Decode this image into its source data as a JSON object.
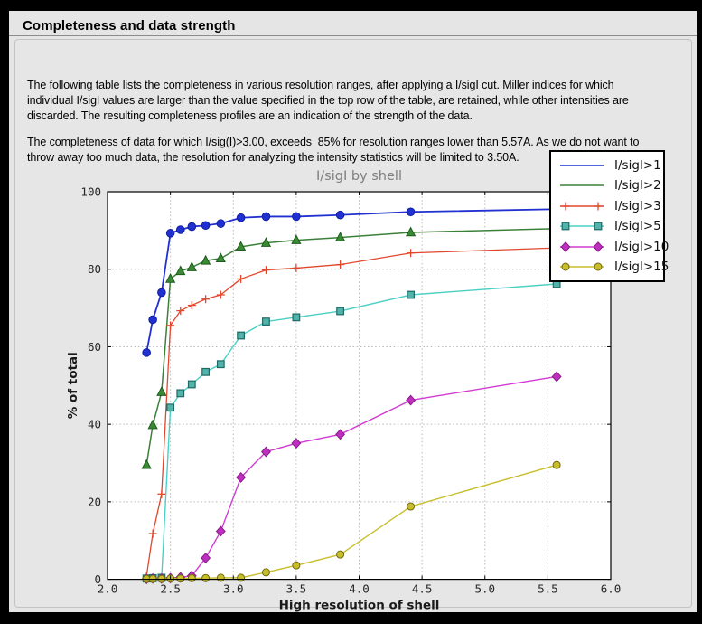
{
  "page": {
    "title": "Completeness and data strength"
  },
  "intro": {
    "paragraph1_lines": [
      "The following table lists the completeness in various resolution ranges, after applying a I/sigI cut. Miller indices for which",
      "individual I/sigI values are larger than the value specified in the top row of the table, are retained, while other intensities are",
      "discarded. The resulting completeness profiles are an indication of the strength of the data."
    ],
    "paragraph2_lines": [
      "The completeness of data for which I/sig(I)>3.00, exceeds  85% for resolution ranges lower than 5.57A. As we do not want to",
      "throw away too much data, the resolution for analyzing the intensity statistics will be limited to 3.50A."
    ]
  },
  "chart_data": {
    "type": "line",
    "title": "I/sigI by shell",
    "xlabel": "High resolution of shell",
    "ylabel": "% of total",
    "xlim": [
      2.0,
      6.0
    ],
    "ylim": [
      0,
      100
    ],
    "x_ticks": [
      "2.0",
      "2.5",
      "3.0",
      "3.5",
      "4.0",
      "4.5",
      "5.0",
      "5.5",
      "6.0"
    ],
    "y_ticks": [
      "0",
      "20",
      "40",
      "60",
      "80",
      "100"
    ],
    "grid": "dotted",
    "legend_position": "upper right",
    "x": [
      2.31,
      2.36,
      2.43,
      2.5,
      2.58,
      2.67,
      2.78,
      2.9,
      3.06,
      3.26,
      3.5,
      3.85,
      4.41,
      5.57
    ],
    "series": [
      {
        "name": "I/sigI>1",
        "color": "#2130d0",
        "marker": "circle",
        "marker_fill": "#2130d0",
        "marker_edge": "#101f9e",
        "marker_size": 4.3,
        "line_width": 1.8,
        "legend_markers": false,
        "values": [
          58.5,
          67.0,
          74.0,
          89.3,
          90.2,
          91.0,
          91.3,
          91.8,
          93.3,
          93.6,
          93.6,
          94.0,
          94.8,
          95.5
        ]
      },
      {
        "name": "I/sigI>2",
        "color": "#3b8039",
        "marker": "triangle",
        "marker_fill": "#3a8a33",
        "marker_edge": "#1d5a1d",
        "marker_size": 4.8,
        "line_width": 1.5,
        "legend_markers": false,
        "values": [
          29.5,
          39.8,
          48.3,
          77.5,
          79.5,
          80.5,
          82.2,
          82.8,
          85.8,
          86.8,
          87.5,
          88.2,
          89.5,
          90.5
        ]
      },
      {
        "name": "I/sigI>3",
        "color": "#e2472e",
        "marker": "plus",
        "marker_fill": "#e2472e",
        "marker_edge": "#e2472e",
        "marker_size": 4.5,
        "line_width": 1.3,
        "legend_markers": true,
        "values": [
          0.8,
          11.8,
          22.0,
          65.5,
          69.3,
          70.7,
          72.3,
          73.4,
          77.5,
          79.8,
          80.3,
          81.2,
          84.2,
          85.5
        ]
      },
      {
        "name": "I/sigI>5",
        "color": "#4bcfc5",
        "marker": "square",
        "marker_fill": "#52b3ab",
        "marker_edge": "#1d6a64",
        "marker_size": 3.8,
        "line_width": 1.4,
        "legend_markers": true,
        "values": [
          0.2,
          0.3,
          0.4,
          44.3,
          48.0,
          50.3,
          53.5,
          55.5,
          62.9,
          66.5,
          67.6,
          69.2,
          73.4,
          76.2
        ]
      },
      {
        "name": "I/sigI>10",
        "color": "#d13bd1",
        "marker": "diamond",
        "marker_fill": "#c02ec0",
        "marker_edge": "#871d87",
        "marker_size": 5.2,
        "line_width": 1.4,
        "legend_markers": true,
        "values": [
          0.1,
          0.2,
          0.2,
          0.3,
          0.5,
          0.9,
          5.5,
          12.4,
          26.3,
          32.9,
          35.1,
          37.4,
          46.2,
          52.3
        ]
      },
      {
        "name": "I/sigI>15",
        "color": "#c8be2c",
        "marker": "circle",
        "marker_fill": "#c8be2c",
        "marker_edge": "#6e690f",
        "marker_size": 4.0,
        "line_width": 1.4,
        "legend_markers": true,
        "values": [
          0.1,
          0.1,
          0.1,
          0.2,
          0.2,
          0.3,
          0.3,
          0.4,
          0.4,
          1.8,
          3.6,
          6.4,
          18.8,
          29.5
        ]
      }
    ]
  }
}
